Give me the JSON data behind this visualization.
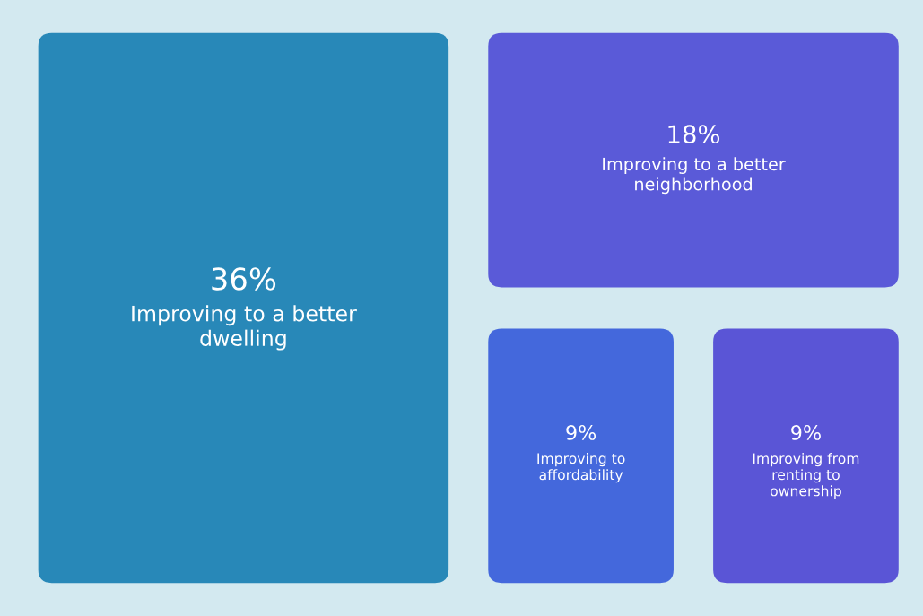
{
  "chart_data": {
    "type": "other",
    "categories": [
      "Improving to a better\ndwelling",
      "Improving to a better\nneighborhood",
      "Improving to\naffordability",
      "Improving from\nrenting to\nownership"
    ],
    "values": [
      36,
      18,
      9,
      9
    ],
    "value_labels": [
      "36%",
      "18%",
      "9%",
      "9%"
    ],
    "colors": [
      "#2888b8",
      "#5a5ad8",
      "#4468dc",
      "#5a55d6"
    ]
  }
}
